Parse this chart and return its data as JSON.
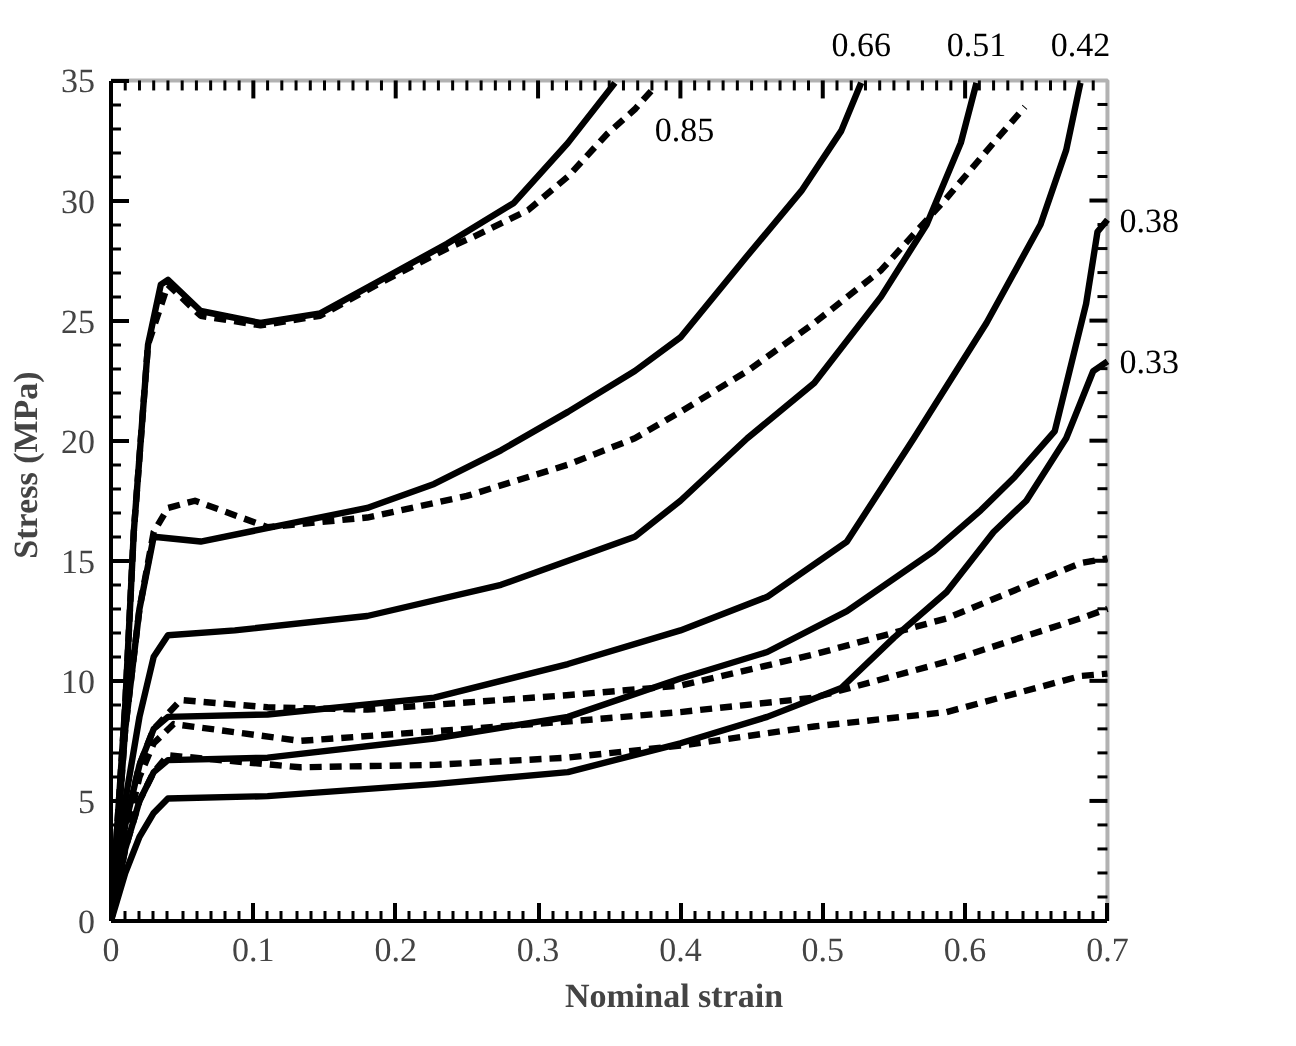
{
  "chart_data": {
    "type": "line",
    "xlabel": "Nominal strain",
    "ylabel": "Stress (MPa)",
    "xlim": [
      0,
      0.7
    ],
    "ylim": [
      0,
      35
    ],
    "xticks": [
      0,
      0.1,
      0.2,
      0.3,
      0.4,
      0.5,
      0.6,
      0.7
    ],
    "yticks": [
      0,
      5,
      10,
      15,
      20,
      25,
      30,
      35
    ],
    "grid": false,
    "marker": "none",
    "series": [
      {
        "color": "#000000",
        "line_style": "solid",
        "x": [
          0,
          0.01,
          0.016,
          0.026,
          0.035,
          0.04,
          0.063,
          0.105,
          0.147,
          0.19,
          0.236,
          0.283,
          0.321,
          0.354
        ],
        "values": [
          0,
          9,
          16.2,
          24.0,
          26.5,
          26.7,
          25.4,
          24.9,
          25.3,
          26.7,
          28.2,
          29.9,
          32.4,
          34.9
        ]
      },
      {
        "color": "#000000",
        "line_style": "dashed",
        "x": [
          0,
          0.01,
          0.016,
          0.026,
          0.04,
          0.063,
          0.105,
          0.147,
          0.19,
          0.236,
          0.255,
          0.293,
          0.321,
          0.349,
          0.368,
          0.38
        ],
        "values": [
          0,
          9,
          16.2,
          24.0,
          26.5,
          25.2,
          24.8,
          25.2,
          26.6,
          28.0,
          28.5,
          29.6,
          31.0,
          32.8,
          33.8,
          34.6
        ]
      },
      {
        "color": "#000000",
        "line_style": "solid",
        "x": [
          0,
          0.01,
          0.02,
          0.03,
          0.063,
          0.18,
          0.227,
          0.274,
          0.321,
          0.368,
          0.4,
          0.447,
          0.485,
          0.513,
          0.527
        ],
        "values": [
          0,
          8,
          13,
          16.0,
          15.8,
          17.2,
          18.2,
          19.6,
          21.2,
          22.9,
          24.3,
          27.7,
          30.4,
          32.9,
          34.9
        ]
      },
      {
        "color": "#000000",
        "line_style": "dashed",
        "x": [
          0,
          0.01,
          0.02,
          0.03,
          0.04,
          0.059,
          0.11,
          0.18,
          0.25,
          0.321,
          0.368,
          0.4,
          0.447,
          0.494,
          0.541,
          0.587,
          0.62,
          0.642
        ],
        "values": [
          0,
          8,
          13,
          16.2,
          17.2,
          17.5,
          16.4,
          16.8,
          17.7,
          19.0,
          20.1,
          21.2,
          22.9,
          24.9,
          27.1,
          30.1,
          32.4,
          33.9
        ]
      },
      {
        "color": "#000000",
        "line_style": "solid",
        "x": [
          0,
          0.01,
          0.02,
          0.03,
          0.04,
          0.087,
          0.18,
          0.274,
          0.368,
          0.4,
          0.447,
          0.494,
          0.541,
          0.573,
          0.597,
          0.608
        ],
        "values": [
          0,
          5,
          8.5,
          11,
          11.9,
          12.1,
          12.7,
          14.0,
          16.0,
          17.5,
          20.1,
          22.4,
          26.0,
          29.0,
          32.4,
          34.9
        ]
      },
      {
        "color": "#000000",
        "line_style": "solid",
        "x": [
          0,
          0.01,
          0.02,
          0.03,
          0.04,
          0.11,
          0.227,
          0.321,
          0.4,
          0.461,
          0.517,
          0.564,
          0.615,
          0.653,
          0.671,
          0.681
        ],
        "values": [
          0,
          4,
          6.5,
          8,
          8.5,
          8.6,
          9.3,
          10.7,
          12.1,
          13.5,
          15.8,
          20.1,
          24.9,
          29.0,
          32.1,
          34.9
        ]
      },
      {
        "color": "#000000",
        "line_style": "solid",
        "x": [
          0,
          0.01,
          0.02,
          0.03,
          0.04,
          0.11,
          0.227,
          0.321,
          0.4,
          0.461,
          0.517,
          0.578,
          0.611,
          0.635,
          0.663,
          0.685,
          0.693,
          0.7
        ],
        "values": [
          0,
          3,
          5,
          6.2,
          6.7,
          6.8,
          7.6,
          8.5,
          10.1,
          11.2,
          12.9,
          15.4,
          17.1,
          18.5,
          20.4,
          25.7,
          28.7,
          29.2
        ]
      },
      {
        "color": "#000000",
        "line_style": "solid",
        "x": [
          0,
          0.01,
          0.02,
          0.03,
          0.04,
          0.11,
          0.227,
          0.321,
          0.4,
          0.461,
          0.513,
          0.55,
          0.587,
          0.62,
          0.643,
          0.671,
          0.69,
          0.7
        ],
        "values": [
          0,
          2,
          3.5,
          4.5,
          5.1,
          5.2,
          5.7,
          6.2,
          7.4,
          8.5,
          9.7,
          11.8,
          13.7,
          16.2,
          17.5,
          20.1,
          22.9,
          23.3
        ]
      },
      {
        "color": "#000000",
        "line_style": "dashed",
        "x": [
          0,
          0.01,
          0.02,
          0.03,
          0.049,
          0.11,
          0.18,
          0.32,
          0.4,
          0.494,
          0.587,
          0.681,
          0.7
        ],
        "values": [
          0,
          4,
          6.5,
          8,
          9.2,
          8.9,
          8.8,
          9.4,
          9.8,
          11.1,
          12.6,
          14.9,
          15.1
        ]
      },
      {
        "color": "#000000",
        "line_style": "dashed",
        "x": [
          0,
          0.01,
          0.02,
          0.03,
          0.044,
          0.133,
          0.227,
          0.32,
          0.4,
          0.494,
          0.587,
          0.681,
          0.7
        ],
        "values": [
          0,
          3.5,
          6,
          7.4,
          8.2,
          7.5,
          7.9,
          8.3,
          8.7,
          9.3,
          10.8,
          12.6,
          13.0
        ]
      },
      {
        "color": "#000000",
        "line_style": "dashed",
        "x": [
          0,
          0.01,
          0.02,
          0.03,
          0.04,
          0.133,
          0.227,
          0.32,
          0.4,
          0.494,
          0.587,
          0.681,
          0.7
        ],
        "values": [
          0,
          3,
          5,
          6.2,
          6.9,
          6.4,
          6.5,
          6.8,
          7.3,
          8.1,
          8.7,
          10.2,
          10.3
        ]
      }
    ],
    "annotations": [
      {
        "text": "0.85",
        "x": 0.368,
        "y": 33.8
      },
      {
        "text": "0.66",
        "x": 0.527,
        "y": 35
      },
      {
        "text": "0.51",
        "x": 0.608,
        "y": 35
      },
      {
        "text": "0.42",
        "x": 0.681,
        "y": 35
      },
      {
        "text": "0.38",
        "x": 0.7,
        "y": 29.2
      },
      {
        "text": "0.33",
        "x": 0.7,
        "y": 23.3
      }
    ]
  }
}
